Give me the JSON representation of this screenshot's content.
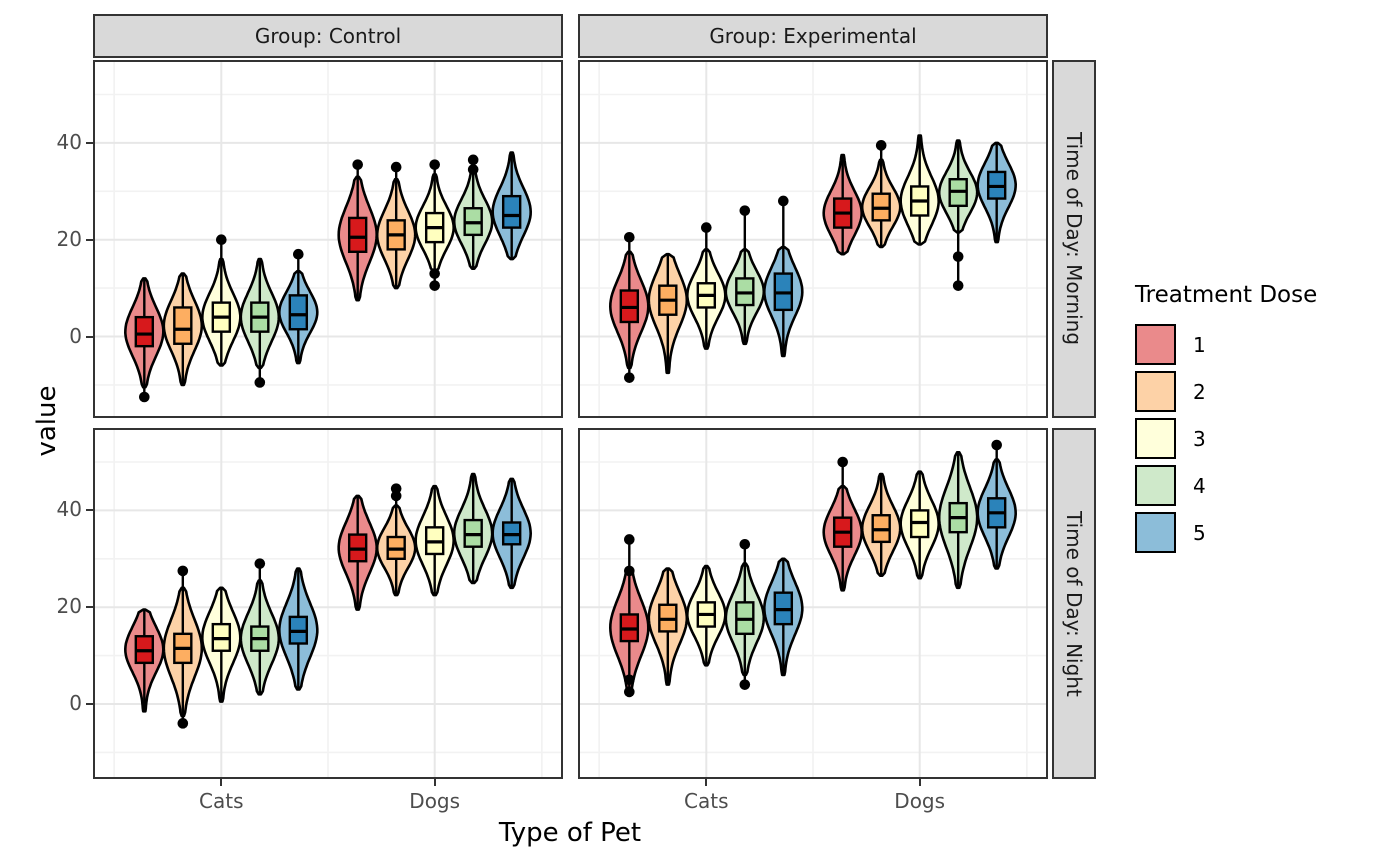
{
  "chart_data": {
    "type": "violin+box (faceted)",
    "xlabel": "Type of Pet",
    "ylabel": "value",
    "x_categories": [
      "Cats",
      "Dogs"
    ],
    "facet_cols": [
      "Group: Control",
      "Group: Experimental"
    ],
    "facet_rows": [
      "Time of Day: Morning",
      "Time of Day: Night"
    ],
    "y_ticks": [
      0,
      20,
      40
    ],
    "y_minor": [
      -10,
      10,
      30,
      50
    ],
    "y_range": [
      -16.5,
      57
    ],
    "grid": "on",
    "legend": {
      "title": "Treatment Dose",
      "position": "right",
      "entries": [
        {
          "label": "1",
          "color": "#D7191C",
          "fill": "#EA8A8B"
        },
        {
          "label": "2",
          "color": "#FDAE61",
          "fill": "#FDD2A7"
        },
        {
          "label": "3",
          "color": "#FFFFBF",
          "fill": "#FFFFDB"
        },
        {
          "label": "4",
          "color": "#ABDDA4",
          "fill": "#CFE9CA"
        },
        {
          "label": "5",
          "color": "#2B83BA",
          "fill": "#8CBDD9"
        }
      ]
    },
    "panels": [
      {
        "row": 0,
        "col": 0,
        "row_label": "Time of Day: Morning",
        "col_label": "Group: Control",
        "groups": [
          {
            "category": "Cats",
            "violins": [
              {
                "dose": "1",
                "lo": -10.5,
                "q1": -2,
                "median": 0.5,
                "q3": 4,
                "hi": 12,
                "outliers": [
                  -12.5
                ]
              },
              {
                "dose": "2",
                "lo": -10,
                "q1": -1.5,
                "median": 1.5,
                "q3": 6,
                "hi": 13,
                "outliers": []
              },
              {
                "dose": "3",
                "lo": -6,
                "q1": 1,
                "median": 4,
                "q3": 7,
                "hi": 16,
                "outliers": [
                  20
                ]
              },
              {
                "dose": "4",
                "lo": -6.5,
                "q1": 1,
                "median": 4,
                "q3": 7,
                "hi": 16,
                "outliers": [
                  -9.5
                ]
              },
              {
                "dose": "5",
                "lo": -5.5,
                "q1": 1.5,
                "median": 4.5,
                "q3": 8.5,
                "hi": 13.5,
                "outliers": [
                  17
                ]
              }
            ]
          },
          {
            "category": "Dogs",
            "violins": [
              {
                "dose": "1",
                "lo": 7.5,
                "q1": 17.5,
                "median": 20.5,
                "q3": 24.5,
                "hi": 33,
                "outliers": [
                  35.5
                ]
              },
              {
                "dose": "2",
                "lo": 10,
                "q1": 18,
                "median": 21,
                "q3": 24,
                "hi": 32.5,
                "outliers": [
                  35
                ]
              },
              {
                "dose": "3",
                "lo": 13.5,
                "q1": 19.5,
                "median": 22.5,
                "q3": 25.5,
                "hi": 33.5,
                "outliers": [
                  35.5,
                  13,
                  10.5
                ]
              },
              {
                "dose": "4",
                "lo": 14,
                "q1": 21,
                "median": 23.5,
                "q3": 26.5,
                "hi": 34.5,
                "outliers": [
                  36.5,
                  34.5
                ]
              },
              {
                "dose": "5",
                "lo": 16,
                "q1": 22.5,
                "median": 25,
                "q3": 29,
                "hi": 38,
                "outliers": []
              }
            ]
          }
        ]
      },
      {
        "row": 0,
        "col": 1,
        "row_label": "Time of Day: Morning",
        "col_label": "Group: Experimental",
        "groups": [
          {
            "category": "Cats",
            "violins": [
              {
                "dose": "1",
                "lo": -6.5,
                "q1": 3,
                "median": 6,
                "q3": 9.5,
                "hi": 17.5,
                "outliers": [
                  20.5,
                  -8.5
                ]
              },
              {
                "dose": "2",
                "lo": -7.5,
                "q1": 4.5,
                "median": 7.5,
                "q3": 10.5,
                "hi": 17,
                "outliers": []
              },
              {
                "dose": "3",
                "lo": -2.5,
                "q1": 6,
                "median": 8.5,
                "q3": 11,
                "hi": 18,
                "outliers": [
                  22.5
                ]
              },
              {
                "dose": "4",
                "lo": -1.5,
                "q1": 6.5,
                "median": 9,
                "q3": 12,
                "hi": 18,
                "outliers": [
                  26
                ]
              },
              {
                "dose": "5",
                "lo": -4,
                "q1": 5.5,
                "median": 9,
                "q3": 13,
                "hi": 18.5,
                "outliers": [
                  28
                ]
              }
            ]
          },
          {
            "category": "Dogs",
            "violins": [
              {
                "dose": "1",
                "lo": 17,
                "q1": 22.5,
                "median": 25.5,
                "q3": 28.5,
                "hi": 37.5,
                "outliers": []
              },
              {
                "dose": "2",
                "lo": 18.5,
                "q1": 24,
                "median": 26.5,
                "q3": 29.5,
                "hi": 36.5,
                "outliers": [
                  39.5
                ]
              },
              {
                "dose": "3",
                "lo": 19,
                "q1": 25,
                "median": 28,
                "q3": 31,
                "hi": 41.5,
                "outliers": []
              },
              {
                "dose": "4",
                "lo": 21.5,
                "q1": 27,
                "median": 30,
                "q3": 32.5,
                "hi": 40.5,
                "outliers": [
                  16.5,
                  10.5
                ]
              },
              {
                "dose": "5",
                "lo": 19.5,
                "q1": 28.5,
                "median": 31,
                "q3": 34,
                "hi": 40,
                "outliers": []
              }
            ]
          }
        ]
      },
      {
        "row": 1,
        "col": 0,
        "row_label": "Time of Day: Night",
        "col_label": "Group: Control",
        "groups": [
          {
            "category": "Cats",
            "violins": [
              {
                "dose": "1",
                "lo": -1.5,
                "q1": 8.5,
                "median": 11,
                "q3": 14,
                "hi": 19.5,
                "outliers": []
              },
              {
                "dose": "2",
                "lo": -2.5,
                "q1": 8.5,
                "median": 11.5,
                "q3": 14.5,
                "hi": 24,
                "outliers": [
                  27.5,
                  -4
                ]
              },
              {
                "dose": "3",
                "lo": 0.5,
                "q1": 11,
                "median": 13.5,
                "q3": 16.5,
                "hi": 24,
                "outliers": []
              },
              {
                "dose": "4",
                "lo": 2,
                "q1": 11,
                "median": 13.5,
                "q3": 16,
                "hi": 25.5,
                "outliers": [
                  29
                ]
              },
              {
                "dose": "5",
                "lo": 3,
                "q1": 12.5,
                "median": 15,
                "q3": 18,
                "hi": 28,
                "outliers": []
              }
            ]
          },
          {
            "category": "Dogs",
            "violins": [
              {
                "dose": "1",
                "lo": 19.5,
                "q1": 29.5,
                "median": 32,
                "q3": 35,
                "hi": 43,
                "outliers": []
              },
              {
                "dose": "2",
                "lo": 22.5,
                "q1": 30,
                "median": 32,
                "q3": 34.5,
                "hi": 41,
                "outliers": [
                  44.5,
                  43
                ]
              },
              {
                "dose": "3",
                "lo": 22.5,
                "q1": 31,
                "median": 33.5,
                "q3": 36.5,
                "hi": 45,
                "outliers": []
              },
              {
                "dose": "4",
                "lo": 25,
                "q1": 32.5,
                "median": 35,
                "q3": 38,
                "hi": 47.5,
                "outliers": []
              },
              {
                "dose": "5",
                "lo": 24,
                "q1": 33,
                "median": 35,
                "q3": 37.5,
                "hi": 46.5,
                "outliers": []
              }
            ]
          }
        ]
      },
      {
        "row": 1,
        "col": 1,
        "row_label": "Time of Day: Night",
        "col_label": "Group: Experimental",
        "groups": [
          {
            "category": "Cats",
            "violins": [
              {
                "dose": "1",
                "lo": 2,
                "q1": 13,
                "median": 15.5,
                "q3": 18.5,
                "hi": 28,
                "outliers": [
                  34,
                  27.5,
                  5,
                  2.5
                ]
              },
              {
                "dose": "2",
                "lo": 4,
                "q1": 15,
                "median": 17.5,
                "q3": 20.5,
                "hi": 28,
                "outliers": []
              },
              {
                "dose": "3",
                "lo": 8,
                "q1": 16,
                "median": 18.5,
                "q3": 21,
                "hi": 28.5,
                "outliers": []
              },
              {
                "dose": "4",
                "lo": 6,
                "q1": 14.5,
                "median": 17.5,
                "q3": 21,
                "hi": 29,
                "outliers": [
                  33,
                  4
                ]
              },
              {
                "dose": "5",
                "lo": 6,
                "q1": 16.5,
                "median": 19.5,
                "q3": 23,
                "hi": 30,
                "outliers": []
              }
            ]
          },
          {
            "category": "Dogs",
            "violins": [
              {
                "dose": "1",
                "lo": 23.5,
                "q1": 32.5,
                "median": 35.5,
                "q3": 38.5,
                "hi": 45,
                "outliers": [
                  50
                ]
              },
              {
                "dose": "2",
                "lo": 26.5,
                "q1": 33.5,
                "median": 36,
                "q3": 39,
                "hi": 47.5,
                "outliers": []
              },
              {
                "dose": "3",
                "lo": 26,
                "q1": 34.5,
                "median": 37.5,
                "q3": 40,
                "hi": 48,
                "outliers": []
              },
              {
                "dose": "4",
                "lo": 24,
                "q1": 35.5,
                "median": 38.5,
                "q3": 41.5,
                "hi": 52,
                "outliers": []
              },
              {
                "dose": "5",
                "lo": 28,
                "q1": 36.5,
                "median": 39.5,
                "q3": 42.5,
                "hi": 50.5,
                "outliers": [
                  53.5
                ]
              }
            ]
          }
        ]
      }
    ],
    "style": {
      "panel_bg": "#ffffff",
      "panel_border": "#333333",
      "grid_major": "#e7e7e7",
      "grid_minor": "#f2f2f2",
      "strip_bg": "#d9d9d9",
      "tick_text": "#4d4d4d",
      "outline": "#000000"
    }
  }
}
